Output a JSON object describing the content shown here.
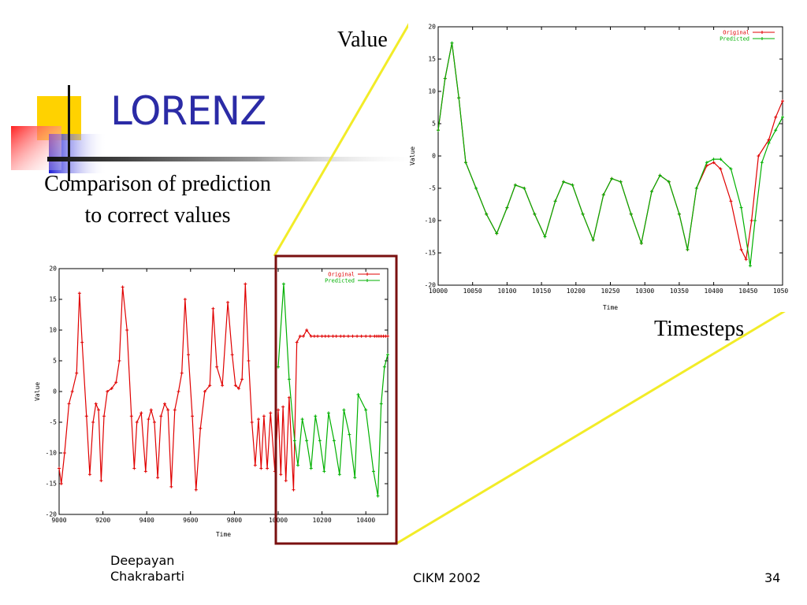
{
  "slide": {
    "title": "LORENZ",
    "subtitle_line1": "Comparison of prediction",
    "subtitle_line2": "to correct values",
    "callout_value": "Value",
    "callout_timesteps": "Timesteps"
  },
  "footer": {
    "author_line1": "Deepayan",
    "author_line2": "Chakrabarti",
    "venue": "CIKM 2002",
    "page": "34"
  },
  "colors": {
    "title": "#2b2ba6",
    "original": "#e00000",
    "predicted": "#00b000",
    "zoom_box": "#7a1010",
    "callout_lines": "#f2ec28"
  },
  "chart_data": [
    {
      "type": "line",
      "xlabel": "Time",
      "ylabel": "Value",
      "xlim": [
        9000,
        10500
      ],
      "ylim": [
        -20,
        20
      ],
      "xticks": [
        9000,
        9200,
        9400,
        9600,
        9800,
        10000,
        10200,
        10400
      ],
      "yticks": [
        -20,
        -15,
        -10,
        -5,
        0,
        5,
        10,
        15,
        20
      ],
      "legend_position": "top-right",
      "series": [
        {
          "name": "Original",
          "color": "#e00000",
          "x": [
            9000,
            9010,
            9025,
            9045,
            9060,
            9080,
            9093,
            9105,
            9125,
            9140,
            9155,
            9168,
            9180,
            9192,
            9205,
            9220,
            9240,
            9260,
            9275,
            9290,
            9310,
            9330,
            9343,
            9355,
            9375,
            9395,
            9408,
            9420,
            9435,
            9450,
            9465,
            9482,
            9497,
            9512,
            9528,
            9545,
            9560,
            9575,
            9590,
            9608,
            9625,
            9645,
            9665,
            9688,
            9703,
            9720,
            9745,
            9770,
            9790,
            9805,
            9820,
            9835,
            9850,
            9865,
            9880,
            9895,
            9910,
            9922,
            9935,
            9950,
            9965,
            9985,
            10000,
            10012,
            10022,
            10035,
            10050,
            10070,
            10085,
            10100,
            10115,
            10130,
            10150,
            10165,
            10180,
            10200,
            10215,
            10230,
            10250,
            10265,
            10285,
            10300,
            10320,
            10340,
            10360,
            10380,
            10400,
            10420,
            10440,
            10450,
            10460,
            10470,
            10480,
            10490,
            10500
          ],
          "values": [
            -12.5,
            -15,
            -10,
            -2,
            0,
            3,
            16,
            8,
            -4,
            -13.5,
            -5,
            -2,
            -3,
            -14.5,
            -4,
            0,
            0.5,
            1.5,
            5,
            17,
            10,
            -4,
            -12.5,
            -5,
            -3.5,
            -13,
            -4.5,
            -3,
            -5,
            -14,
            -4,
            -2,
            -3,
            -15.5,
            -3,
            0,
            3,
            15,
            6,
            -4,
            -16,
            -6,
            0,
            1,
            13.5,
            4,
            1,
            14.5,
            6,
            1,
            0.5,
            2,
            17.5,
            5,
            -5,
            -12,
            -4.5,
            -12.5,
            -4,
            -12.5,
            -3.5,
            -13,
            -3,
            -13.5,
            -2.5,
            -14.5,
            -1,
            -16,
            8,
            9,
            9,
            10,
            9,
            9,
            9,
            9,
            9,
            9,
            9,
            9,
            9,
            9,
            9,
            9,
            9,
            9,
            9,
            9,
            9,
            9,
            9,
            9,
            9,
            9,
            9
          ]
        },
        {
          "name": "Predicted",
          "color": "#00b000",
          "x": [
            10000,
            10025,
            10050,
            10075,
            10090,
            10110,
            10130,
            10150,
            10170,
            10190,
            10210,
            10230,
            10255,
            10280,
            10300,
            10325,
            10350,
            10365,
            10400,
            10435,
            10455,
            10470,
            10485,
            10500
          ],
          "values": [
            4,
            17.5,
            2,
            -8,
            -12,
            -4.5,
            -8,
            -12.5,
            -4,
            -8,
            -13,
            -3.5,
            -8,
            -13.5,
            -3,
            -7,
            -14,
            -0.5,
            -3,
            -13,
            -17,
            -2,
            4,
            6
          ]
        }
      ]
    },
    {
      "type": "line",
      "xlabel": "Time",
      "ylabel": "Value",
      "xlim": [
        10000,
        10500
      ],
      "ylim": [
        -20,
        20
      ],
      "xticks": [
        10000,
        10050,
        10100,
        10150,
        10200,
        10250,
        10300,
        10350,
        10400,
        10450,
        10500
      ],
      "yticks": [
        -20,
        -15,
        -10,
        -5,
        0,
        5,
        10,
        15,
        20
      ],
      "legend_position": "top-right",
      "series": [
        {
          "name": "Original",
          "color": "#e00000",
          "x": [
            10000,
            10010,
            10020,
            10030,
            10040,
            10055,
            10070,
            10085,
            10100,
            10112,
            10125,
            10140,
            10155,
            10170,
            10182,
            10195,
            10210,
            10225,
            10240,
            10252,
            10265,
            10280,
            10295,
            10310,
            10322,
            10335,
            10350,
            10362,
            10375,
            10390,
            10400,
            10410,
            10425,
            10440,
            10447,
            10455,
            10465,
            10480,
            10490,
            10500
          ],
          "values": [
            4,
            12,
            17.5,
            9,
            -1,
            -5,
            -9,
            -12,
            -8,
            -4.5,
            -5,
            -9,
            -12.5,
            -7,
            -4,
            -4.5,
            -9,
            -13,
            -6,
            -3.5,
            -4,
            -9,
            -13.5,
            -5.5,
            -3,
            -4,
            -9,
            -14.5,
            -5,
            -1.5,
            -1,
            -2,
            -7,
            -14.5,
            -16,
            -10,
            0,
            2.5,
            6,
            8.5
          ]
        },
        {
          "name": "Predicted",
          "color": "#00b000",
          "x": [
            10000,
            10010,
            10020,
            10030,
            10040,
            10055,
            10070,
            10085,
            10100,
            10112,
            10125,
            10140,
            10155,
            10170,
            10182,
            10195,
            10210,
            10225,
            10240,
            10252,
            10265,
            10280,
            10295,
            10310,
            10322,
            10335,
            10350,
            10362,
            10375,
            10390,
            10400,
            10410,
            10425,
            10440,
            10453,
            10460,
            10470,
            10480,
            10490,
            10500
          ],
          "values": [
            4,
            12,
            17.5,
            9,
            -1,
            -5,
            -9,
            -12,
            -8,
            -4.5,
            -5,
            -9,
            -12.5,
            -7,
            -4,
            -4.5,
            -9,
            -13,
            -6,
            -3.5,
            -4,
            -9,
            -13.5,
            -5.5,
            -3,
            -4,
            -9,
            -14.5,
            -5,
            -1,
            -0.5,
            -0.5,
            -2,
            -8,
            -17,
            -10,
            -1,
            2,
            4,
            6
          ]
        }
      ]
    }
  ]
}
